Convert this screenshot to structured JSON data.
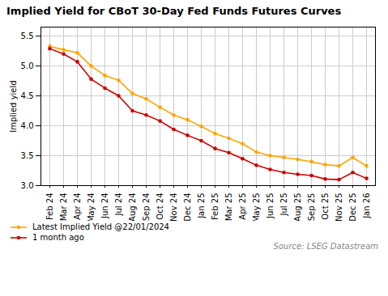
{
  "chart_data": {
    "type": "line",
    "title": "Implied Yield for CBoT 30-Day Fed Funds Futures Curves",
    "ylabel": "Implied yield",
    "annotation": "Source: LSEG Datastream",
    "categories": [
      "Feb 24",
      "Mar 24",
      "Apr 24",
      "May 24",
      "Jun 24",
      "Jul 24",
      "Aug 24",
      "Sep 24",
      "Oct 24",
      "Nov 24",
      "Dec 24",
      "Jan 25",
      "Feb 25",
      "Mar 25",
      "Apr 25",
      "May 25",
      "Jun 25",
      "Jul 25",
      "Aug 25",
      "Sep 25",
      "Oct 25",
      "Nov 25",
      "Dec 25",
      "Jan 26"
    ],
    "series": [
      {
        "name": "Latest Implied Yield @22/01/2024",
        "color": "#FFA500",
        "marker": "circle",
        "values": [
          5.33,
          5.27,
          5.22,
          5.0,
          4.84,
          4.76,
          4.54,
          4.45,
          4.31,
          4.18,
          4.1,
          3.99,
          3.87,
          3.79,
          3.7,
          3.56,
          3.5,
          3.47,
          3.44,
          3.4,
          3.35,
          3.33,
          3.47,
          3.33
        ]
      },
      {
        "name": "1 month ago",
        "color": "#CC0000",
        "marker": "circle",
        "values": [
          5.29,
          5.2,
          5.07,
          4.78,
          4.63,
          4.5,
          4.25,
          4.18,
          4.08,
          3.94,
          3.84,
          3.75,
          3.62,
          3.55,
          3.45,
          3.34,
          3.27,
          3.22,
          3.19,
          3.17,
          3.11,
          3.1,
          3.22,
          3.12
        ]
      }
    ],
    "ylim": [
      3.0,
      5.65
    ],
    "yticks": [
      {
        "value": 3.0,
        "label": "3.0"
      },
      3.5,
      {
        "value": 4.0,
        "label": "4.0"
      },
      4.5,
      {
        "value": 5.0,
        "label": "5.0"
      },
      5.5
    ],
    "grid": true,
    "legend": "lower left"
  }
}
